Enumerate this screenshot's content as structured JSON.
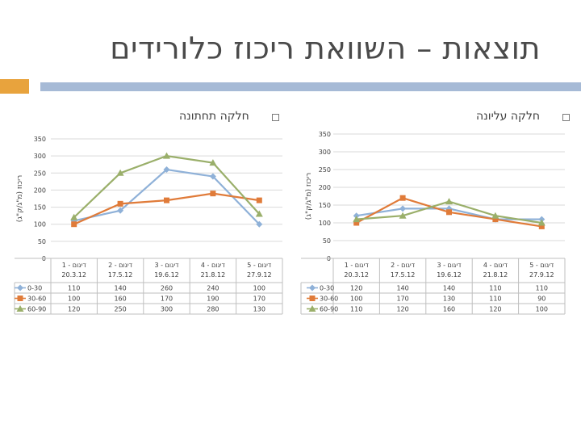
{
  "slide": {
    "title": "תוצאות – השוואת ריכוז כלורידים",
    "left_heading": "חלקה תחתונה",
    "right_heading": "חלקה עליונה"
  },
  "colors": {
    "s0": "#8fb1d8",
    "s1": "#e07b39",
    "s2": "#9aaf6a",
    "grid": "#d9d9d9",
    "table": "#bfbfbf",
    "accent": "#e8a33d",
    "bar": "#a6bad6"
  },
  "chart_data": [
    {
      "type": "line",
      "ylabel": "ריכוז (מ\"ג/ק\"ג)",
      "ylim": [
        0,
        350
      ],
      "yticks": [
        0,
        50,
        100,
        150,
        200,
        250,
        300,
        350
      ],
      "grid": true,
      "legend": "data-table",
      "categories": [
        [
          "דיגום - 1",
          "20.3.12"
        ],
        [
          "דיגום - 2",
          "17.5.12"
        ],
        [
          "דיגום - 3",
          "19.6.12"
        ],
        [
          "דיגום - 4",
          "21.8.12"
        ],
        [
          "דיגום - 5",
          "27.9.12"
        ]
      ],
      "series": [
        {
          "name": "0-30",
          "values": [
            110,
            140,
            260,
            240,
            100
          ]
        },
        {
          "name": "30-60",
          "values": [
            100,
            160,
            170,
            190,
            170
          ]
        },
        {
          "name": "60-90",
          "values": [
            120,
            250,
            300,
            280,
            130
          ]
        }
      ]
    },
    {
      "type": "line",
      "ylabel": "ריכוז (מ\"ג/ק\"ג)",
      "ylim": [
        0,
        350
      ],
      "yticks": [
        0,
        50,
        100,
        150,
        200,
        250,
        300,
        350
      ],
      "grid": true,
      "legend": "data-table",
      "categories": [
        [
          "דיגום - 1",
          "20.3.12"
        ],
        [
          "דיגום - 2",
          "17.5.12"
        ],
        [
          "דיגום - 3",
          "19.6.12"
        ],
        [
          "דיגום - 4",
          "21.8.12"
        ],
        [
          "דיגום - 5",
          "27.9.12"
        ]
      ],
      "series": [
        {
          "name": "0-30",
          "values": [
            120,
            140,
            140,
            110,
            110
          ]
        },
        {
          "name": "30-60",
          "values": [
            100,
            170,
            130,
            110,
            90
          ]
        },
        {
          "name": "60-90",
          "values": [
            110,
            120,
            160,
            120,
            100
          ]
        }
      ]
    }
  ]
}
